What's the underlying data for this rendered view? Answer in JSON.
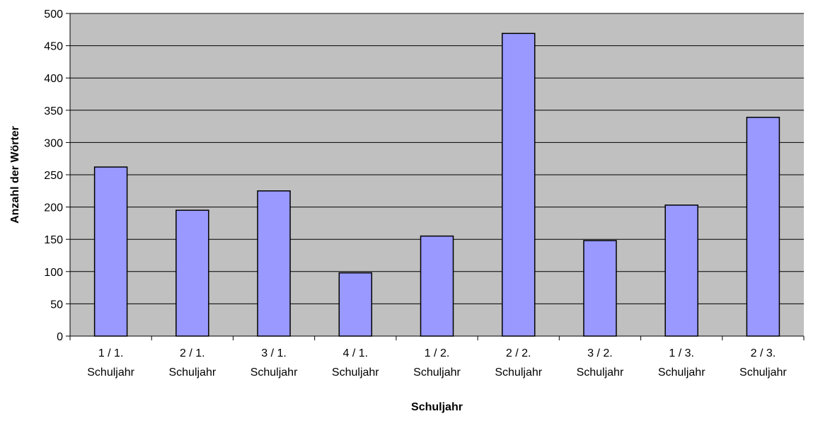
{
  "chart_data": {
    "type": "bar",
    "title": "",
    "xlabel": "Schuljahr",
    "ylabel": "Anzahl der Wörter",
    "categories": [
      [
        "1 / 1.",
        "Schuljahr"
      ],
      [
        "2 / 1.",
        "Schuljahr"
      ],
      [
        "3 / 1.",
        "Schuljahr"
      ],
      [
        "4 / 1.",
        "Schuljahr"
      ],
      [
        "1 / 2.",
        "Schuljahr"
      ],
      [
        "2 / 2.",
        "Schuljahr"
      ],
      [
        "3 / 2.",
        "Schuljahr"
      ],
      [
        "1 / 3.",
        "Schuljahr"
      ],
      [
        "2 / 3.",
        "Schuljahr"
      ]
    ],
    "values": [
      262,
      195,
      225,
      98,
      155,
      469,
      148,
      203,
      339
    ],
    "ylim": [
      0,
      500
    ],
    "yticks": [
      "0",
      "50",
      "100",
      "150",
      "200",
      "250",
      "300",
      "350",
      "400",
      "450",
      "500"
    ],
    "grid": true,
    "legend": "none",
    "colors": {
      "plot_background": "#c0c0c0",
      "bar_fill": "#9999ff",
      "bar_stroke": "#000000",
      "grid": "#000000"
    }
  }
}
